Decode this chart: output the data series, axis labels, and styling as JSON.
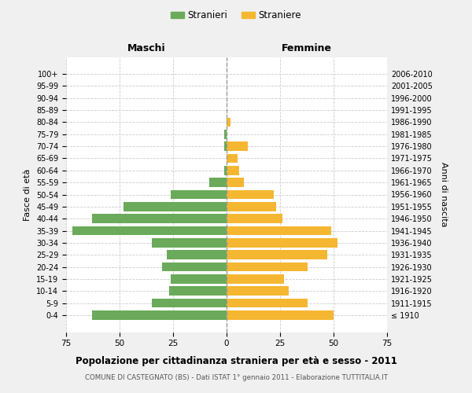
{
  "age_groups": [
    "100+",
    "95-99",
    "90-94",
    "85-89",
    "80-84",
    "75-79",
    "70-74",
    "65-69",
    "60-64",
    "55-59",
    "50-54",
    "45-49",
    "40-44",
    "35-39",
    "30-34",
    "25-29",
    "20-24",
    "15-19",
    "10-14",
    "5-9",
    "0-4"
  ],
  "birth_years": [
    "≤ 1910",
    "1911-1915",
    "1916-1920",
    "1921-1925",
    "1926-1930",
    "1931-1935",
    "1936-1940",
    "1941-1945",
    "1946-1950",
    "1951-1955",
    "1956-1960",
    "1961-1965",
    "1966-1970",
    "1971-1975",
    "1976-1980",
    "1981-1985",
    "1986-1990",
    "1991-1995",
    "1996-2000",
    "2001-2005",
    "2006-2010"
  ],
  "maschi": [
    0,
    0,
    0,
    0,
    0,
    1,
    1,
    0,
    1,
    8,
    26,
    48,
    63,
    72,
    35,
    28,
    30,
    26,
    27,
    35,
    63
  ],
  "femmine": [
    0,
    0,
    0,
    0,
    2,
    0,
    10,
    5,
    6,
    8,
    22,
    23,
    26,
    49,
    52,
    47,
    38,
    27,
    29,
    38,
    50
  ],
  "maschi_color": "#6aaa5a",
  "femmine_color": "#f5b731",
  "background_color": "#f0f0f0",
  "plot_bg_color": "#ffffff",
  "title": "Popolazione per cittadinanza straniera per età e sesso - 2011",
  "subtitle": "COMUNE DI CASTEGNATO (BS) - Dati ISTAT 1° gennaio 2011 - Elaborazione TUTTITALIA.IT",
  "ylabel_left": "Fasce di età",
  "ylabel_right": "Anni di nascita",
  "xlabel_left": "Maschi",
  "xlabel_top_right": "Femmine",
  "legend_maschi": "Stranieri",
  "legend_femmine": "Straniere",
  "xlim": 75,
  "grid_color": "#cccccc"
}
